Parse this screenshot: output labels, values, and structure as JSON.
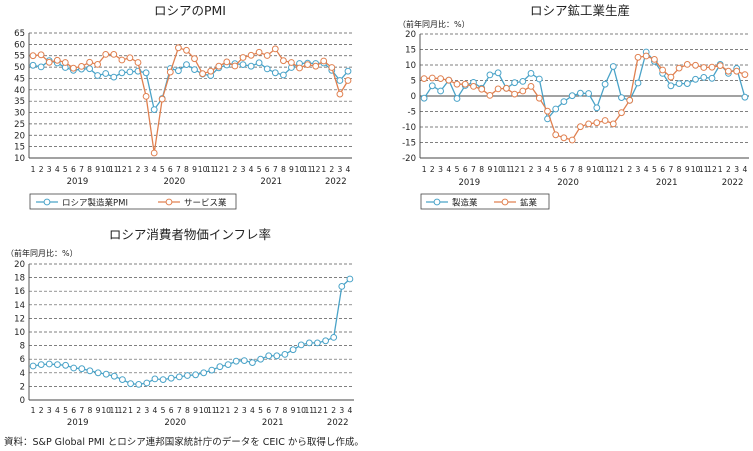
{
  "colors": {
    "blue": "#4aa3c8",
    "orange": "#e08050",
    "axis": "#444444",
    "grid": "#555555"
  },
  "months": [
    "1",
    "2",
    "3",
    "4",
    "5",
    "6",
    "7",
    "8",
    "9",
    "10",
    "11",
    "12",
    "1",
    "2",
    "3",
    "4",
    "5",
    "6",
    "7",
    "8",
    "9",
    "10",
    "11",
    "12",
    "1",
    "2",
    "3",
    "4",
    "5",
    "6",
    "7",
    "8",
    "9",
    "10",
    "11",
    "12",
    "1",
    "2",
    "3",
    "4"
  ],
  "years": [
    "2019",
    "2020",
    "2021",
    "2022"
  ],
  "source": "資料：S&P Global PMI とロシア連邦国家統計庁のデータを CEIC から取得し作成。",
  "chart_data": [
    {
      "id": "pmi",
      "type": "line",
      "title": "ロシアのPMI",
      "unit_label": "",
      "ylim": [
        10,
        65
      ],
      "yticks": [
        10,
        15,
        20,
        25,
        30,
        35,
        40,
        45,
        50,
        55,
        60,
        65
      ],
      "grid": "dashed horizontal",
      "legend": "bottom",
      "series": [
        {
          "name": "ロシア製造業PMI",
          "color_key": "blue",
          "values": [
            50.8,
            50.1,
            52.8,
            51.8,
            49.8,
            48.6,
            49.1,
            49.3,
            46.3,
            47.2,
            45.6,
            47.5,
            47.9,
            48.2,
            47.5,
            31.3,
            36.2,
            49.4,
            48.4,
            51.1,
            48.9,
            46.9,
            46.3,
            49.7,
            50.9,
            51.5,
            51.1,
            50.4,
            51.9,
            49.2,
            47.5,
            46.5,
            49.8,
            51.6,
            51.7,
            51.6,
            51.8,
            48.6,
            44.1,
            48.2
          ]
        },
        {
          "name": "サービス業",
          "color_key": "orange",
          "values": [
            55.0,
            55.4,
            52.1,
            53.0,
            52.0,
            49.5,
            50.3,
            52.1,
            51.2,
            55.6,
            55.6,
            53.1,
            54.1,
            52.0,
            37.1,
            12.2,
            35.9,
            47.8,
            58.5,
            57.4,
            53.7,
            47.1,
            48.2,
            50.4,
            52.3,
            50.5,
            54.2,
            55.2,
            56.5,
            55.1,
            58.0,
            52.8,
            52.0,
            49.6,
            51.1,
            50.4,
            52.7,
            49.8,
            38.1,
            44.1
          ]
        }
      ]
    },
    {
      "id": "mining",
      "type": "line",
      "title": "ロシア鉱工業生産",
      "unit_label": "（前年同月比：%）",
      "ylim": [
        -20,
        20
      ],
      "yticks": [
        -20,
        -15,
        -10,
        -5,
        0,
        5,
        10,
        15,
        20
      ],
      "grid": "dashed horizontal",
      "legend": "bottom",
      "series": [
        {
          "name": "製造業",
          "color_key": "blue",
          "values": [
            -0.7,
            3.3,
            1.6,
            5.1,
            -0.8,
            3.4,
            4.4,
            2.5,
            6.8,
            7.5,
            2.5,
            4.3,
            4.7,
            7.3,
            5.5,
            -7.4,
            -4.2,
            -1.8,
            0.1,
            0.9,
            0.8,
            -3.8,
            3.8,
            9.5,
            -0.5,
            -1.4,
            4.2,
            14.2,
            11.2,
            7.3,
            3.3,
            4.0,
            4.0,
            5.4,
            6.0,
            5.7,
            10.2,
            7.3,
            8.9,
            -0.4
          ]
        },
        {
          "name": "鉱業",
          "color_key": "orange",
          "values": [
            5.6,
            5.8,
            5.6,
            5.1,
            3.8,
            3.8,
            3.1,
            2.2,
            0.2,
            2.3,
            2.5,
            0.6,
            1.6,
            3.1,
            -0.7,
            -4.9,
            -12.5,
            -13.5,
            -14.2,
            -9.9,
            -9.0,
            -8.6,
            -7.9,
            -9.0,
            -5.4,
            -1.4,
            12.5,
            12.9,
            11.8,
            8.4,
            6.1,
            9.0,
            10.2,
            9.9,
            9.2,
            9.3,
            9.8,
            8.0,
            8.0,
            6.9
          ]
        }
      ]
    },
    {
      "id": "cpi",
      "type": "line",
      "title": "ロシア消費者物価インフレ率",
      "unit_label": "（前年同月比：%）",
      "ylim": [
        0,
        20
      ],
      "yticks": [
        0,
        2,
        4,
        6,
        8,
        10,
        12,
        14,
        16,
        18,
        20
      ],
      "grid": "dashed horizontal",
      "legend": "none",
      "series": [
        {
          "name": "",
          "color_key": "blue",
          "values": [
            5.0,
            5.2,
            5.3,
            5.2,
            5.1,
            4.7,
            4.6,
            4.3,
            4.0,
            3.8,
            3.5,
            3.0,
            2.4,
            2.3,
            2.5,
            3.1,
            3.0,
            3.2,
            3.4,
            3.6,
            3.7,
            4.0,
            4.4,
            4.9,
            5.2,
            5.7,
            5.8,
            5.5,
            6.0,
            6.5,
            6.5,
            6.7,
            7.4,
            8.1,
            8.4,
            8.4,
            8.7,
            9.2,
            16.7,
            17.8
          ]
        }
      ]
    }
  ]
}
